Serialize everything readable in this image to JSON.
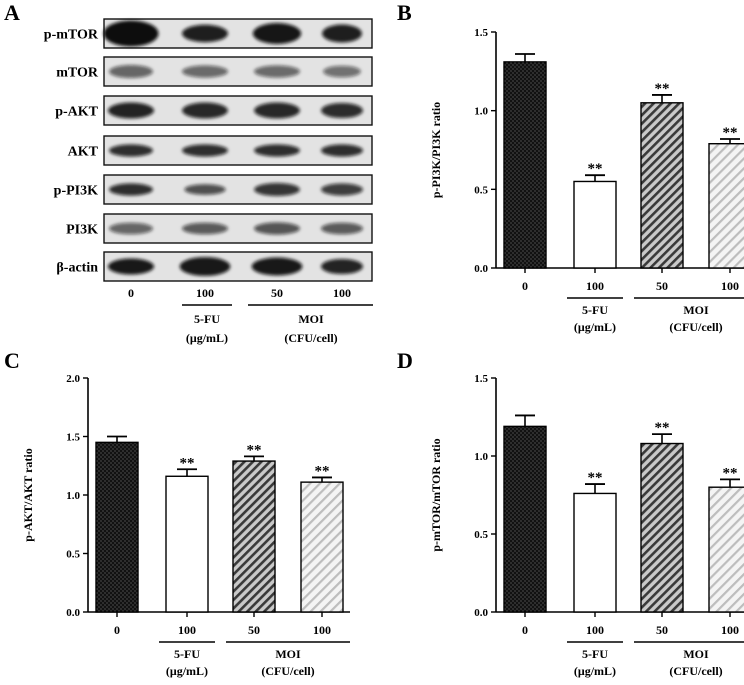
{
  "panels": {
    "A": {
      "letter": "A",
      "blot_rows": [
        "p-mTOR",
        "mTOR",
        "p-AKT",
        "AKT",
        "p-PI3K",
        "PI3K",
        "β-actin"
      ],
      "lanes": [
        "0",
        "100",
        "50",
        "100"
      ],
      "groups": [
        {
          "name": "5-FU",
          "unit": "(μg/mL)"
        },
        {
          "name": "MOI",
          "unit": "(CFU/cell)"
        }
      ]
    }
  },
  "chart_data": [
    {
      "type": "bar",
      "letter": "B",
      "ylabel": "p-PI3K/PI3K ratio",
      "ylim": [
        0,
        1.5
      ],
      "yticks": [
        "0.0",
        "0.5",
        "1.0",
        "1.5"
      ],
      "categories": [
        "0",
        "100",
        "50",
        "100"
      ],
      "values": [
        1.31,
        0.55,
        1.05,
        0.79
      ],
      "errors": [
        0.05,
        0.04,
        0.05,
        0.03
      ],
      "significance": [
        "",
        "**",
        "**",
        "**"
      ],
      "groups": [
        {
          "name": "5-FU",
          "unit": "(μg/mL)"
        },
        {
          "name": "MOI",
          "unit": "(CFU/cell)"
        }
      ],
      "fills": [
        "dotted-black",
        "white",
        "hatch-dark",
        "hatch-light"
      ]
    },
    {
      "type": "bar",
      "letter": "C",
      "ylabel": "p-AKT/AKT ratio",
      "ylim": [
        0,
        2.0
      ],
      "yticks": [
        "0.0",
        "0.5",
        "1.0",
        "1.5",
        "2.0"
      ],
      "categories": [
        "0",
        "100",
        "50",
        "100"
      ],
      "values": [
        1.45,
        1.16,
        1.29,
        1.11
      ],
      "errors": [
        0.05,
        0.06,
        0.04,
        0.04
      ],
      "significance": [
        "",
        "**",
        "**",
        "**"
      ],
      "groups": [
        {
          "name": "5-FU",
          "unit": "(μg/mL)"
        },
        {
          "name": "MOI",
          "unit": "(CFU/cell)"
        }
      ],
      "fills": [
        "dotted-black",
        "white",
        "hatch-dark",
        "hatch-light"
      ]
    },
    {
      "type": "bar",
      "letter": "D",
      "ylabel": "p-mTOR/mTOR ratio",
      "ylim": [
        0,
        1.5
      ],
      "yticks": [
        "0.0",
        "0.5",
        "1.0",
        "1.5"
      ],
      "categories": [
        "0",
        "100",
        "50",
        "100"
      ],
      "values": [
        1.19,
        0.76,
        1.08,
        0.8
      ],
      "errors": [
        0.07,
        0.06,
        0.06,
        0.05
      ],
      "significance": [
        "",
        "**",
        "**",
        "**"
      ],
      "groups": [
        {
          "name": "5-FU",
          "unit": "(μg/mL)"
        },
        {
          "name": "MOI",
          "unit": "(CFU/cell)"
        }
      ],
      "fills": [
        "dotted-black",
        "white",
        "hatch-dark",
        "hatch-light"
      ]
    }
  ]
}
